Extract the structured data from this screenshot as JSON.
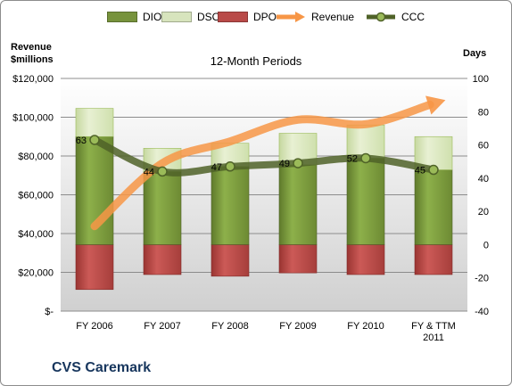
{
  "legend": {
    "dio": "DIO",
    "dso": "DSO",
    "dpo": "DPO",
    "revenue": "Revenue",
    "ccc": "CCC"
  },
  "axes": {
    "left_title_line1": "Revenue",
    "left_title_line2": "$millions",
    "right_title": "Days"
  },
  "chart_title": "12-Month Periods",
  "company": "CVS Caremark",
  "colors": {
    "dio": "#77933c",
    "dso": "#d7e4bd",
    "dpo": "#b94a48",
    "revenue": "#f79646",
    "ccc": "#4f6228",
    "plot_bg_top": "#ffffff",
    "plot_bg_bottom": "#d9d9d9"
  },
  "chart_data": {
    "type": "bar",
    "categories": [
      [
        "FY 2006"
      ],
      [
        "FY 2007"
      ],
      [
        "FY 2008"
      ],
      [
        "FY 2009"
      ],
      [
        "FY 2010"
      ],
      [
        "FY & TTM",
        "2011"
      ]
    ],
    "left_axis": {
      "min": 0,
      "max": 120000,
      "step": 20000,
      "tick_labels": [
        "$-",
        "$20,000",
        "$40,000",
        "$60,000",
        "$80,000",
        "$100,000",
        "$120,000"
      ]
    },
    "right_axis": {
      "min": -40,
      "max": 100,
      "step": 20,
      "tick_labels": [
        "-40",
        "-20",
        "0",
        "20",
        "40",
        "60",
        "80",
        "100"
      ]
    },
    "series": [
      {
        "name": "DIO",
        "axis": "right",
        "values": [
          65,
          44,
          47,
          48,
          52,
          45
        ]
      },
      {
        "name": "DSO",
        "axis": "right",
        "values": [
          17,
          14,
          14,
          19,
          20,
          20
        ]
      },
      {
        "name": "DPO",
        "axis": "right",
        "values": [
          -27,
          -18,
          -19,
          -17,
          -18,
          -18
        ]
      },
      {
        "name": "Revenue",
        "axis": "left",
        "values": [
          43800,
          76300,
          87500,
          98700,
          96400,
          107000
        ]
      },
      {
        "name": "CCC",
        "axis": "right",
        "values": [
          63,
          44,
          47,
          49,
          52,
          45
        ]
      }
    ],
    "data_labels": [
      "63",
      "44",
      "47",
      "49",
      "52",
      "45"
    ],
    "grid": true,
    "legend_position": "top"
  }
}
